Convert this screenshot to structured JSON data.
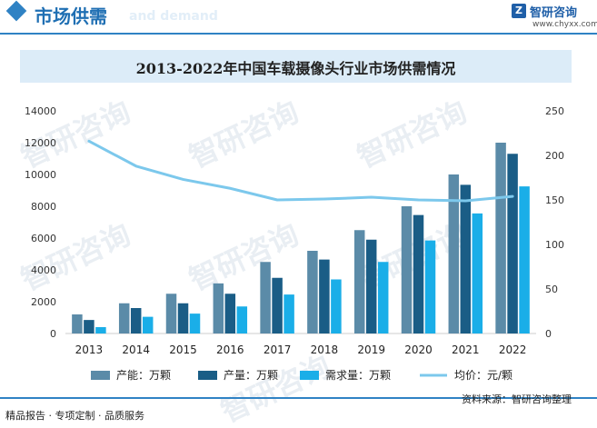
{
  "header": {
    "title": "市场供需",
    "ghost_text": "and demand",
    "logo_mark": "Z",
    "logo_name": "智研咨询",
    "logo_url": "www.chyxx.com"
  },
  "chart_data": {
    "type": "bar",
    "title": "2013-2022年中国车载摄像头行业市场供需情况",
    "categories": [
      "2013",
      "2014",
      "2015",
      "2016",
      "2017",
      "2018",
      "2019",
      "2020",
      "2021",
      "2022"
    ],
    "series": [
      {
        "name": "产能：万颗",
        "type": "bar",
        "axis": "left",
        "color": "#5b8ba8",
        "values": [
          1200,
          1900,
          2500,
          3150,
          4500,
          5200,
          6500,
          8000,
          10000,
          12000
        ]
      },
      {
        "name": "产量：万颗",
        "type": "bar",
        "axis": "left",
        "color": "#1a5d86",
        "values": [
          850,
          1600,
          1900,
          2500,
          3500,
          4650,
          5900,
          7450,
          9350,
          11300
        ]
      },
      {
        "name": "需求量：万颗",
        "type": "bar",
        "axis": "left",
        "color": "#1aaee8",
        "values": [
          400,
          1050,
          1250,
          1700,
          2450,
          3400,
          4500,
          5850,
          7550,
          9250
        ]
      },
      {
        "name": "均价：元/颗",
        "type": "line",
        "axis": "right",
        "color": "#7cc8ec",
        "values": [
          216,
          188,
          173,
          163,
          150,
          151,
          153,
          150,
          149,
          154
        ]
      }
    ],
    "ylim_left": [
      0,
      14000
    ],
    "yticks_left": [
      "0",
      "2000",
      "4000",
      "6000",
      "8000",
      "10000",
      "12000",
      "14000"
    ],
    "ylim_right": [
      0,
      250
    ],
    "yticks_right": [
      "0",
      "50",
      "100",
      "150",
      "200",
      "250"
    ],
    "grid": false,
    "legend_position": "bottom"
  },
  "watermark": "智研咨询",
  "footer": {
    "left": "精品报告 · 专项定制 · 品质服务",
    "source": "资料来源：智研咨询整理"
  }
}
